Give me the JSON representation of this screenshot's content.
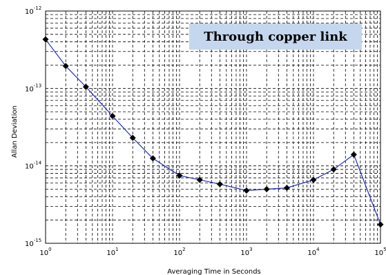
{
  "chart_data": {
    "type": "line",
    "title": "",
    "xlabel": "Averaging Time in Seconds",
    "ylabel": "Allan Deviation",
    "x_scale": "log",
    "y_scale": "log",
    "xlim": [
      1,
      100000
    ],
    "ylim": [
      1e-15,
      1e-12
    ],
    "grid": true,
    "grid_style": "dashed",
    "legend": "none",
    "line_color": "#1f2bbf",
    "marker_color": "#000000",
    "marker": "diamond",
    "annotation": {
      "text": "Through copper link",
      "background": "#c5d7ee",
      "placement": "top-right"
    },
    "x_ticks": [
      {
        "base": "10",
        "exp": "0"
      },
      {
        "base": "10",
        "exp": "1"
      },
      {
        "base": "10",
        "exp": "2"
      },
      {
        "base": "10",
        "exp": "3"
      },
      {
        "base": "10",
        "exp": "4"
      },
      {
        "base": "10",
        "exp": "5"
      }
    ],
    "y_ticks": [
      {
        "base": "10",
        "exp": "-12"
      },
      {
        "base": "10",
        "exp": "-13"
      },
      {
        "base": "10",
        "exp": "-14"
      },
      {
        "base": "10",
        "exp": "-15"
      }
    ],
    "series": [
      {
        "x": [
          1,
          2,
          4,
          10,
          20,
          40,
          100,
          200,
          400,
          1000,
          2000,
          4000,
          10000,
          20000,
          40000,
          100000
        ],
        "y": [
          4.3e-13,
          1.95e-13,
          1.05e-13,
          4.4e-14,
          2.3e-14,
          1.25e-14,
          7.5e-15,
          6.6e-15,
          5.8e-15,
          4.8e-15,
          5e-15,
          5.2e-15,
          6.6e-15,
          9e-15,
          1.4e-14,
          1.75e-15
        ]
      }
    ]
  }
}
